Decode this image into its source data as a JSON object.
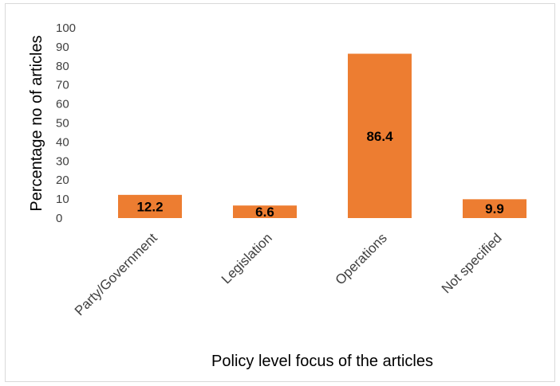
{
  "chart_data": {
    "type": "bar",
    "title": "",
    "xlabel": "Policy level focus of the articles",
    "ylabel": "Percentage no of articles",
    "categories": [
      "Party/Government",
      "Legislation",
      "Operations",
      "Not specified"
    ],
    "values": [
      12.2,
      6.6,
      86.4,
      9.9
    ],
    "data_labels": [
      "12.2",
      "6.6",
      "86.4",
      "9.9"
    ],
    "yticks": [
      "0",
      "10",
      "20",
      "30",
      "40",
      "50",
      "60",
      "70",
      "80",
      "90",
      "100"
    ],
    "ylim": [
      0,
      100
    ],
    "grid": false,
    "legend": "none",
    "bar_color": "#ED7D31"
  }
}
